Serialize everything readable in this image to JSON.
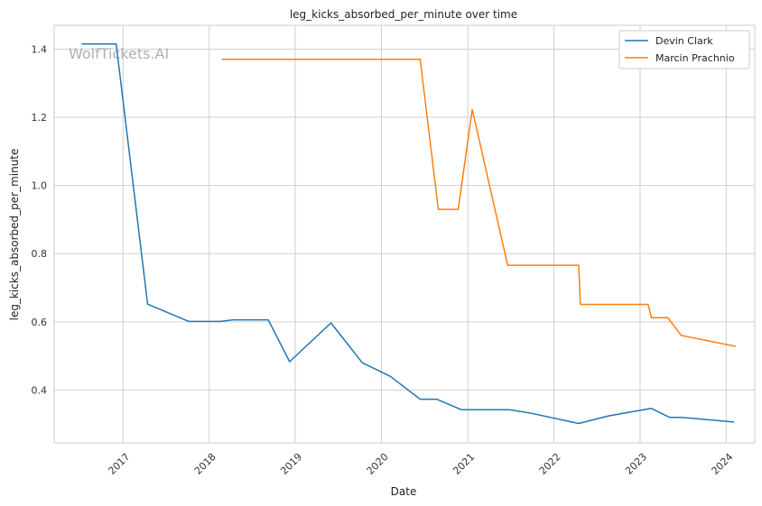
{
  "chart_data": {
    "type": "line",
    "title": "leg_kicks_absorbed_per_minute over time",
    "xlabel": "Date",
    "ylabel": "leg_kicks_absorbed_per_minute",
    "watermark": "WolfTickets.AI",
    "xlim": [
      "2016-03-15",
      "2024-05-01"
    ],
    "ylim": [
      0.245,
      1.47
    ],
    "x_ticks": [
      "2017",
      "2018",
      "2019",
      "2020",
      "2021",
      "2022",
      "2023",
      "2024"
    ],
    "x_tick_dates": [
      "2017-01-01",
      "2018-01-01",
      "2019-01-01",
      "2020-01-01",
      "2021-01-01",
      "2022-01-01",
      "2023-01-01",
      "2024-01-01"
    ],
    "y_ticks": [
      0.4,
      0.6,
      0.8,
      1.0,
      1.2,
      1.4
    ],
    "y_tick_labels": [
      "0.4",
      "0.6",
      "0.8",
      "1.0",
      "1.2",
      "1.4"
    ],
    "grid": true,
    "legend_position": "top-right",
    "series": [
      {
        "name": "Devin Clark",
        "color": "#1f77b4",
        "x": [
          "2016-07-09",
          "2016-12-03",
          "2017-04-15",
          "2017-10-07",
          "2018-02-18",
          "2018-04-14",
          "2018-09-08",
          "2018-12-08",
          "2019-06-01",
          "2019-10-12",
          "2020-02-08",
          "2020-06-13",
          "2020-08-22",
          "2020-12-05",
          "2021-06-26",
          "2021-09-18",
          "2022-04-16",
          "2022-08-20",
          "2023-02-18",
          "2023-05-06",
          "2023-06-24",
          "2024-02-03"
        ],
        "y": [
          1.415,
          1.415,
          0.652,
          0.601,
          0.601,
          0.606,
          0.606,
          0.483,
          0.597,
          0.48,
          0.44,
          0.373,
          0.373,
          0.342,
          0.342,
          0.333,
          0.302,
          0.324,
          0.346,
          0.32,
          0.32,
          0.306
        ]
      },
      {
        "name": "Marcin Prachnio",
        "color": "#ff7f0e",
        "x": [
          "2018-02-24",
          "2020-06-13",
          "2020-08-29",
          "2020-11-21",
          "2021-01-20",
          "2021-06-19",
          "2022-04-16",
          "2022-04-23",
          "2023-02-04",
          "2023-02-18",
          "2023-04-29",
          "2023-06-24",
          "2024-02-10"
        ],
        "y": [
          1.37,
          1.37,
          0.93,
          0.93,
          1.223,
          0.766,
          0.766,
          0.651,
          0.651,
          0.612,
          0.612,
          0.56,
          0.528
        ]
      }
    ]
  }
}
